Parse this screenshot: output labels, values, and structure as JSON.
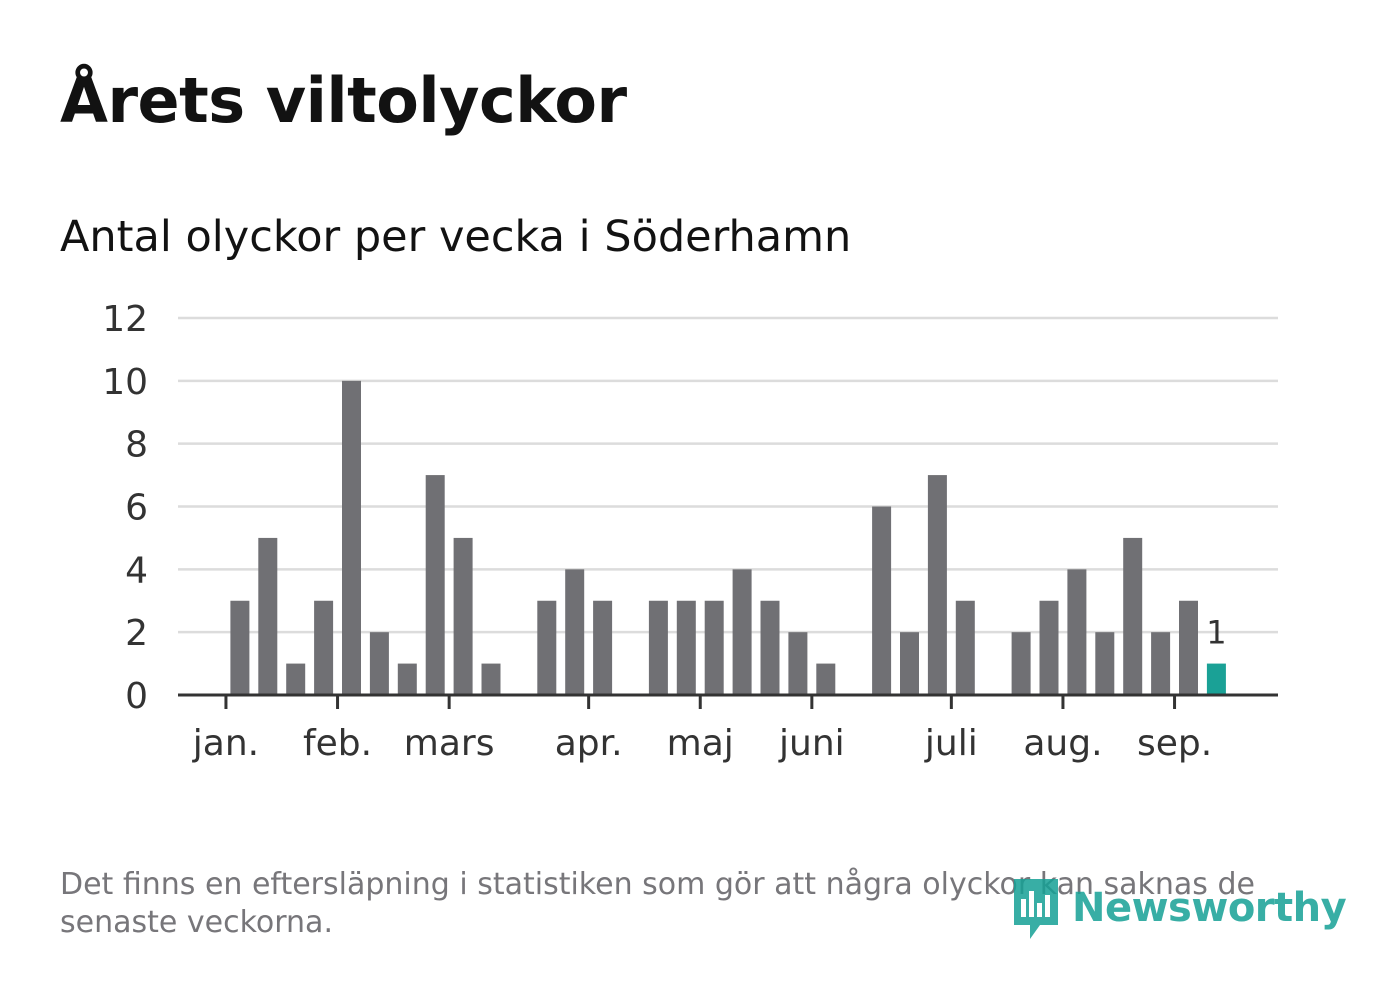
{
  "title": "Årets viltolyckor",
  "subtitle": "Antal olyckor per vecka i Söderhamn",
  "footnote": "Det finns en eftersläpning i statistiken som gör att några olyckor kan saknas de senaste veckorna.",
  "brand": {
    "name": "Newsworthy",
    "color": "#16a196",
    "icon": "newsworthy-logo-icon"
  },
  "colors": {
    "bar": "#707074",
    "highlight": "#1aa196",
    "grid": "#dcdcdc",
    "axis": "#333333",
    "text": "#333333"
  },
  "chart_data": {
    "type": "bar",
    "x": [
      1,
      2,
      3,
      4,
      5,
      6,
      7,
      8,
      9,
      10,
      11,
      12,
      13,
      14,
      15,
      16,
      17,
      18,
      19,
      20,
      21,
      22,
      23,
      24,
      25,
      26,
      27,
      28,
      29,
      30,
      31,
      32,
      33,
      34,
      35,
      36,
      37,
      38
    ],
    "values": [
      0,
      3,
      5,
      1,
      3,
      10,
      2,
      1,
      7,
      5,
      1,
      0,
      3,
      4,
      3,
      0,
      3,
      3,
      3,
      4,
      3,
      2,
      1,
      0,
      6,
      2,
      7,
      3,
      0,
      2,
      3,
      4,
      2,
      5,
      2,
      3,
      1,
      0
    ],
    "highlight_index": 36,
    "highlight_label": "1",
    "month_ticks": [
      {
        "label": "jan.",
        "x": 1.5
      },
      {
        "label": "feb.",
        "x": 5.5
      },
      {
        "label": "mars",
        "x": 9.5
      },
      {
        "label": "apr.",
        "x": 14.5
      },
      {
        "label": "maj",
        "x": 18.5
      },
      {
        "label": "juni",
        "x": 22.5
      },
      {
        "label": "juli",
        "x": 27.5
      },
      {
        "label": "aug.",
        "x": 31.5
      },
      {
        "label": "sep.",
        "x": 35.5
      }
    ],
    "ylim": [
      0,
      12
    ],
    "yticks": [
      0,
      2,
      4,
      6,
      8,
      10,
      12
    ],
    "grid": true,
    "title": "Antal olyckor per vecka i Söderhamn",
    "xlabel": "",
    "ylabel": ""
  }
}
